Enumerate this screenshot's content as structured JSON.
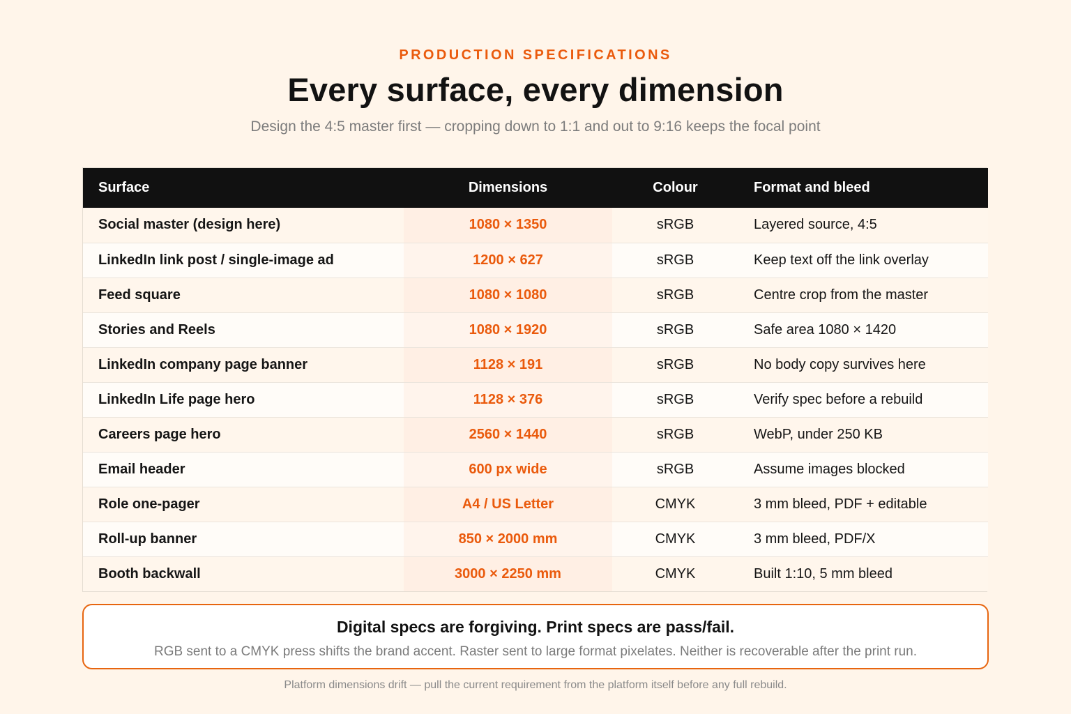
{
  "header": {
    "eyebrow": "PRODUCTION SPECIFICATIONS",
    "title": "Every surface, every dimension",
    "subtitle": "Design the 4:5 master first — cropping down to 1:1 and out to 9:16 keeps the focal point"
  },
  "table": {
    "columns": [
      "Surface",
      "Dimensions",
      "Colour",
      "Format and bleed"
    ],
    "rows": [
      {
        "surface": "Social master (design here)",
        "dimensions": "1080 × 1350",
        "colour": "sRGB",
        "format": "Layered source, 4:5"
      },
      {
        "surface": "LinkedIn link post / single-image ad",
        "dimensions": "1200 × 627",
        "colour": "sRGB",
        "format": "Keep text off the link overlay"
      },
      {
        "surface": "Feed square",
        "dimensions": "1080 × 1080",
        "colour": "sRGB",
        "format": "Centre crop from the master"
      },
      {
        "surface": "Stories and Reels",
        "dimensions": "1080 × 1920",
        "colour": "sRGB",
        "format": "Safe area 1080 × 1420"
      },
      {
        "surface": "LinkedIn company page banner",
        "dimensions": "1128 × 191",
        "colour": "sRGB",
        "format": "No body copy survives here"
      },
      {
        "surface": "LinkedIn Life page hero",
        "dimensions": "1128 × 376",
        "colour": "sRGB",
        "format": "Verify spec before a rebuild"
      },
      {
        "surface": "Careers page hero",
        "dimensions": "2560 × 1440",
        "colour": "sRGB",
        "format": "WebP, under 250 KB"
      },
      {
        "surface": "Email header",
        "dimensions": "600 px wide",
        "colour": "sRGB",
        "format": "Assume images blocked"
      },
      {
        "surface": "Role one-pager",
        "dimensions": "A4 / US Letter",
        "colour": "CMYK",
        "format": "3 mm bleed, PDF + editable"
      },
      {
        "surface": "Roll-up banner",
        "dimensions": "850 × 2000 mm",
        "colour": "CMYK",
        "format": "3 mm bleed, PDF/X"
      },
      {
        "surface": "Booth backwall",
        "dimensions": "3000 × 2250 mm",
        "colour": "CMYK",
        "format": "Built 1:10, 5 mm bleed"
      }
    ]
  },
  "callout": {
    "title": "Digital specs are forgiving. Print specs are pass/fail.",
    "body": "RGB sent to a CMYK press shifts the brand accent. Raster sent to large format pixelates. Neither is recoverable after the print run."
  },
  "footnote": "Platform dimensions drift — pull the current requirement from the platform itself before any full rebuild.",
  "colors": {
    "accent": "#ea5a0c",
    "background": "#fff5ea",
    "header_row": "#111111"
  }
}
